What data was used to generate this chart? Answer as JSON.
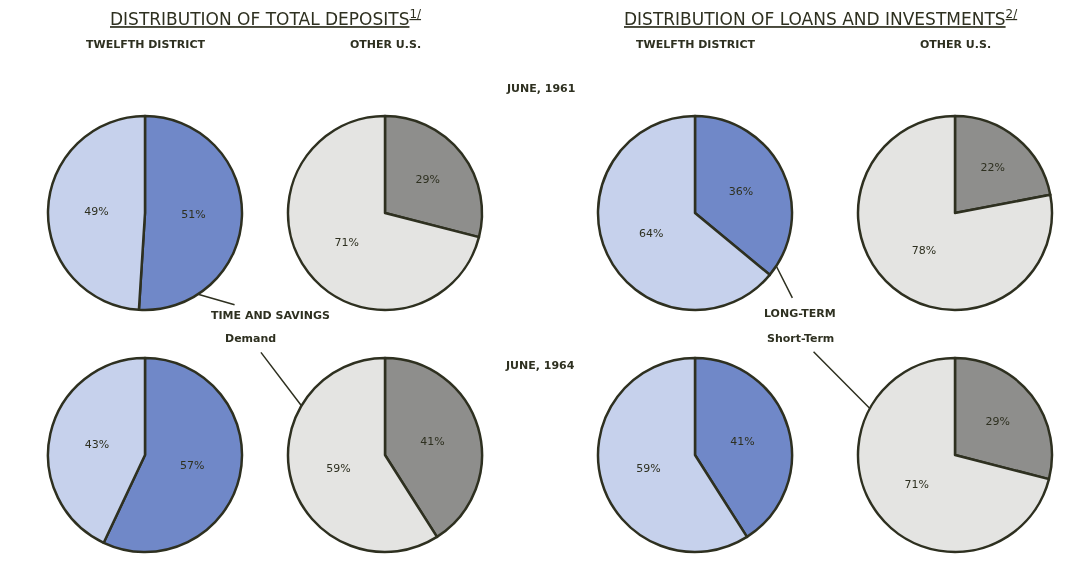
{
  "chart_data": [
    {
      "type": "pie",
      "title": "TWELFTH DISTRICT",
      "annotations": [
        "DISTRIBUTION OF TOTAL DEPOSITS$^{1/}$"
      ],
      "categories": [
        "TIME AND SAVINGS",
        null
      ],
      "values": [
        51,
        49
      ],
      "value_labels": [
        "51%",
        "49%"
      ],
      "colors": [
        "#7088c8",
        "#c6d1ec"
      ]
    },
    {
      "type": "pie",
      "title": "OTHER U.S.",
      "annotations": [
        "JUNE, 1961"
      ],
      "categories": [
        null,
        null
      ],
      "values": [
        29,
        71
      ],
      "value_labels": [
        "29%",
        "71%"
      ],
      "colors": [
        "#8e8e8c",
        "#e4e4e2"
      ]
    },
    {
      "type": "pie",
      "title": "TWELFTH DISTRICT",
      "annotations": [
        "DISTRIBUTION OF LOANS AND INVESTMENTS$^{2/}$"
      ],
      "categories": [
        "LONG-TERM",
        null
      ],
      "values": [
        36,
        64
      ],
      "value_labels": [
        "36%",
        "64%"
      ],
      "colors": [
        "#7088c8",
        "#c6d1ec"
      ]
    },
    {
      "type": "pie",
      "title": "OTHER U.S.",
      "categories": [
        null,
        null
      ],
      "values": [
        22,
        78
      ],
      "value_labels": [
        "22%",
        "78%"
      ],
      "colors": [
        "#8e8e8c",
        "#e4e4e2"
      ]
    },
    {
      "type": "pie",
      "categories": [
        null,
        null
      ],
      "values": [
        57,
        43
      ],
      "value_labels": [
        "57%",
        "43%"
      ],
      "colors": [
        "#7088c8",
        "#c6d1ec"
      ]
    },
    {
      "type": "pie",
      "annotations": [
        "JUNE, 1964"
      ],
      "categories": [
        null,
        "Demand"
      ],
      "values": [
        41,
        59
      ],
      "value_labels": [
        "41%",
        "59%"
      ],
      "colors": [
        "#8e8e8c",
        "#e4e4e2"
      ]
    },
    {
      "type": "pie",
      "categories": [
        null,
        null
      ],
      "values": [
        41,
        59
      ],
      "value_labels": [
        "41%",
        "59%"
      ],
      "colors": [
        "#7088c8",
        "#c6d1ec"
      ]
    },
    {
      "type": "pie",
      "categories": [
        null,
        "Short-Term"
      ],
      "values": [
        29,
        71
      ],
      "value_labels": [
        "29%",
        "71%"
      ],
      "colors": [
        "#8e8e8c",
        "#e4e4e2"
      ]
    }
  ]
}
